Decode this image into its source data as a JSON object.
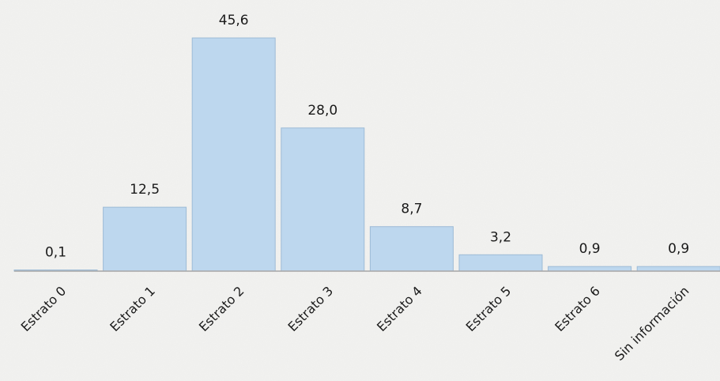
{
  "chart_data": {
    "type": "bar",
    "title": "",
    "xlabel": "",
    "ylabel": "",
    "categories": [
      "Estrato 0",
      "Estrato 1",
      "Estrato 2",
      "Estrato 3",
      "Estrato 4",
      "Estrato 5",
      "Estrato 6",
      "Sin información"
    ],
    "values": [
      0.1,
      12.5,
      45.6,
      28.0,
      8.7,
      3.2,
      0.9,
      0.9
    ],
    "data_labels": [
      "0,1",
      "12,5",
      "45,6",
      "28,0",
      "8,7",
      "3,2",
      "0,9",
      "0,9"
    ],
    "ylim": [
      0,
      46
    ],
    "grid": false,
    "legend": "none",
    "colors": {
      "bar_fill": "#bdd7ee",
      "bar_stroke": "#9dbbd6",
      "axis": "#a6a6a6",
      "text": "#1a1a1a",
      "background": "#f3f3f1"
    }
  }
}
